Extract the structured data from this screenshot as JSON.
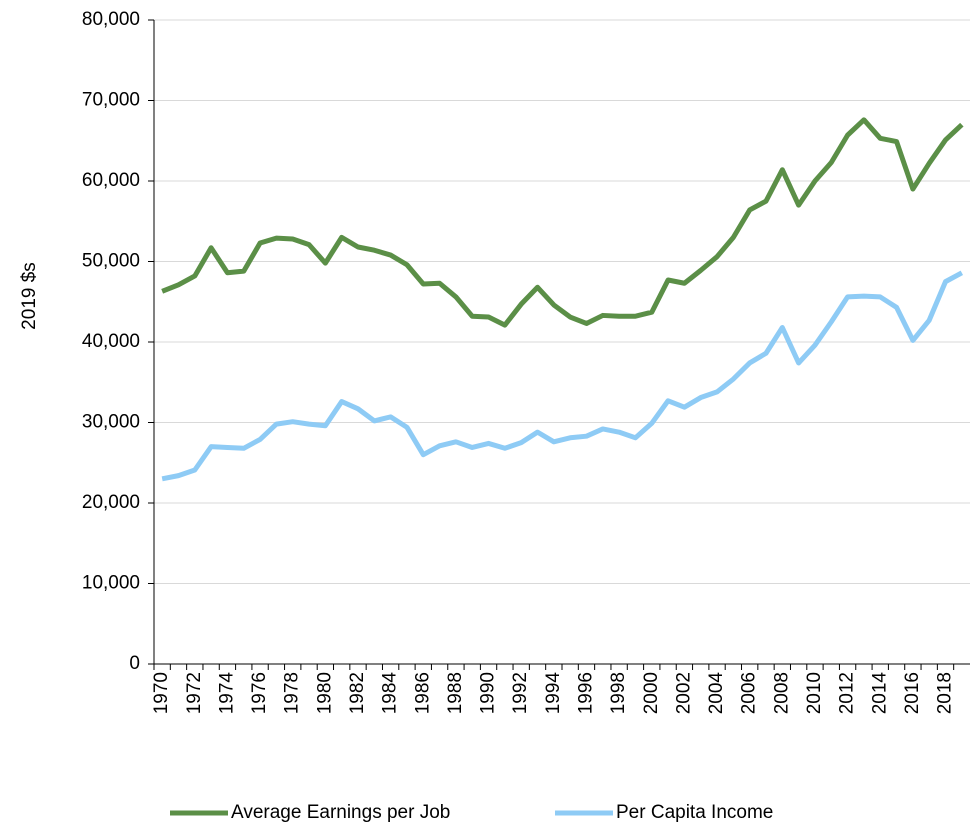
{
  "chart_data": {
    "type": "line",
    "y_label": "2019 $s",
    "categories": [
      "1970",
      null,
      "1972",
      null,
      "1974",
      null,
      "1976",
      null,
      "1978",
      null,
      "1980",
      null,
      "1982",
      null,
      "1984",
      null,
      "1986",
      null,
      "1988",
      null,
      "1990",
      null,
      "1992",
      null,
      "1994",
      null,
      "1996",
      null,
      "1998",
      null,
      "2000",
      null,
      "2002",
      null,
      "2004",
      null,
      "2006",
      null,
      "2008",
      null,
      "2010",
      null,
      "2012",
      null,
      "2014",
      null,
      "2016",
      null,
      "2018",
      null
    ],
    "series": [
      {
        "name": "Average Earnings per Job",
        "color": "#5b8f47",
        "values": [
          46300,
          47100,
          48200,
          51700,
          48600,
          48800,
          52300,
          52900,
          52800,
          52100,
          49800,
          53000,
          51800,
          51400,
          50800,
          49600,
          47200,
          47300,
          45600,
          43200,
          43100,
          42100,
          44700,
          46800,
          44600,
          43100,
          42300,
          43300,
          43200,
          43200,
          43700,
          47700,
          47300,
          48900,
          50600,
          53000,
          56400,
          57500,
          61400,
          57000,
          60000,
          62300,
          65700,
          67600,
          65300,
          64900,
          59000,
          62200,
          65100,
          67000
        ]
      },
      {
        "name": "Per Capita Income",
        "color": "#8ecbf5",
        "values": [
          23000,
          23400,
          24100,
          27000,
          26900,
          26800,
          27900,
          29800,
          30100,
          29800,
          29600,
          32600,
          31700,
          30200,
          30700,
          29400,
          26000,
          27100,
          27600,
          26900,
          27400,
          26800,
          27500,
          28800,
          27600,
          28100,
          28300,
          29200,
          28800,
          28100,
          29900,
          32700,
          31900,
          33100,
          33800,
          35400,
          37400,
          38600,
          41800,
          37400,
          39600,
          42500,
          45600,
          45700,
          45600,
          44300,
          40200,
          42700,
          47500,
          48600
        ]
      }
    ],
    "ylim": [
      0,
      80000
    ],
    "yticks": [
      0,
      {
        "value": 10000,
        "label": "10,000"
      },
      {
        "value": 20000,
        "label": "20,000"
      },
      {
        "value": 30000,
        "label": "30,000"
      },
      {
        "value": 40000,
        "label": "40,000"
      },
      {
        "value": 50000,
        "label": "50,000"
      },
      {
        "value": 60000,
        "label": "60,000"
      },
      {
        "value": 70000,
        "label": "70,000"
      },
      {
        "value": 80000,
        "label": "80,000"
      }
    ],
    "grid": true
  }
}
